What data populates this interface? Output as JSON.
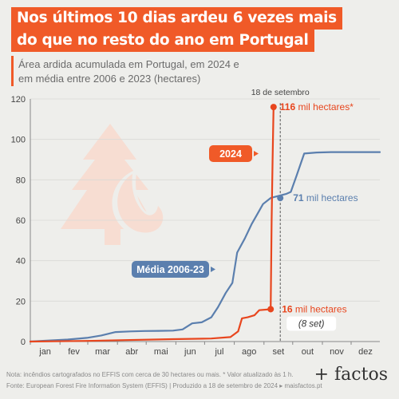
{
  "header": {
    "title_line_1": "Nos últimos 10 dias ardeu 6 vezes mais",
    "title_line_2": "do que no resto do ano em Portugal",
    "subtitle_line_1": "Área ardida acumulada em Portugal, em 2024 e",
    "subtitle_line_2": "em média entre 2006 e 2023 (hectares)"
  },
  "colors": {
    "accent": "#f05a28",
    "series_2024": "#e8461e",
    "series_media": "#5b7fae",
    "background": "#eeeeeb",
    "grid": "#d9d9d6",
    "illustration": "#f7ddd2"
  },
  "chart_data": {
    "type": "line",
    "ylabel": "",
    "xlabel": "",
    "ylim": [
      0,
      120
    ],
    "yticks": [
      0,
      20,
      40,
      60,
      80,
      100,
      120
    ],
    "xlim": [
      1,
      366
    ],
    "x_ticks": [
      {
        "label": "jan",
        "day": 1
      },
      {
        "label": "fev",
        "day": 32
      },
      {
        "label": "mar",
        "day": 61
      },
      {
        "label": "abr",
        "day": 92
      },
      {
        "label": "mai",
        "day": 122
      },
      {
        "label": "jun",
        "day": 153
      },
      {
        "label": "jul",
        "day": 183
      },
      {
        "label": "ago",
        "day": 214
      },
      {
        "label": "set",
        "day": 245
      },
      {
        "label": "out",
        "day": 275
      },
      {
        "label": "nov",
        "day": 306
      },
      {
        "label": "dez",
        "day": 336
      }
    ],
    "grid": "horizontal",
    "series": [
      {
        "name": "Média 2006-23",
        "color": "#5b7fae",
        "points": [
          [
            1,
            0
          ],
          [
            20,
            0.5
          ],
          [
            40,
            1
          ],
          [
            60,
            1.8
          ],
          [
            75,
            3
          ],
          [
            90,
            4.7
          ],
          [
            105,
            5
          ],
          [
            120,
            5.2
          ],
          [
            135,
            5.3
          ],
          [
            150,
            5.4
          ],
          [
            160,
            6
          ],
          [
            170,
            9
          ],
          [
            180,
            9.5
          ],
          [
            190,
            12
          ],
          [
            197,
            17
          ],
          [
            205,
            24
          ],
          [
            212,
            29
          ],
          [
            217,
            44
          ],
          [
            225,
            51
          ],
          [
            232,
            58
          ],
          [
            238,
            63
          ],
          [
            244,
            68
          ],
          [
            252,
            71
          ],
          [
            260,
            72
          ],
          [
            268,
            73
          ],
          [
            273,
            74
          ],
          [
            279,
            82
          ],
          [
            287,
            93
          ],
          [
            300,
            93.5
          ],
          [
            315,
            93.7
          ],
          [
            340,
            93.7
          ],
          [
            366,
            93.7
          ]
        ]
      },
      {
        "name": "2024",
        "color": "#e8461e",
        "points": [
          [
            1,
            0
          ],
          [
            60,
            0.3
          ],
          [
            100,
            0.7
          ],
          [
            150,
            1.2
          ],
          [
            190,
            1.5
          ],
          [
            210,
            2.2
          ],
          [
            218,
            5
          ],
          [
            222,
            11.5
          ],
          [
            228,
            12
          ],
          [
            235,
            13
          ],
          [
            240,
            15.5
          ],
          [
            252,
            16
          ],
          [
            253,
            60
          ],
          [
            254,
            90
          ],
          [
            255,
            116
          ]
        ]
      }
    ],
    "marker_line": {
      "day": 262,
      "label": "18 de setembro"
    },
    "annotations": {
      "peak_2024_value": "116",
      "peak_2024_unit": "mil hectares*",
      "media_value": "71",
      "media_unit": "mil hectares",
      "sept8_value": "16",
      "sept8_unit": "mil hectares",
      "sept8_note": "(8 set)"
    },
    "legend": {
      "label_2024": "2024",
      "label_media": "Média 2006-23"
    }
  },
  "footer": {
    "note": "Nota: incêndios cartografados no EFFIS com cerca de 30 hectares ou mais. * Valor atualizado às 1 h.",
    "source": "Fonte: European Forest Fire Information System (EFFIS) | Produzido a 18 de setembro de 2024 ▸ maisfactos.pt",
    "brand": "+ factos"
  }
}
